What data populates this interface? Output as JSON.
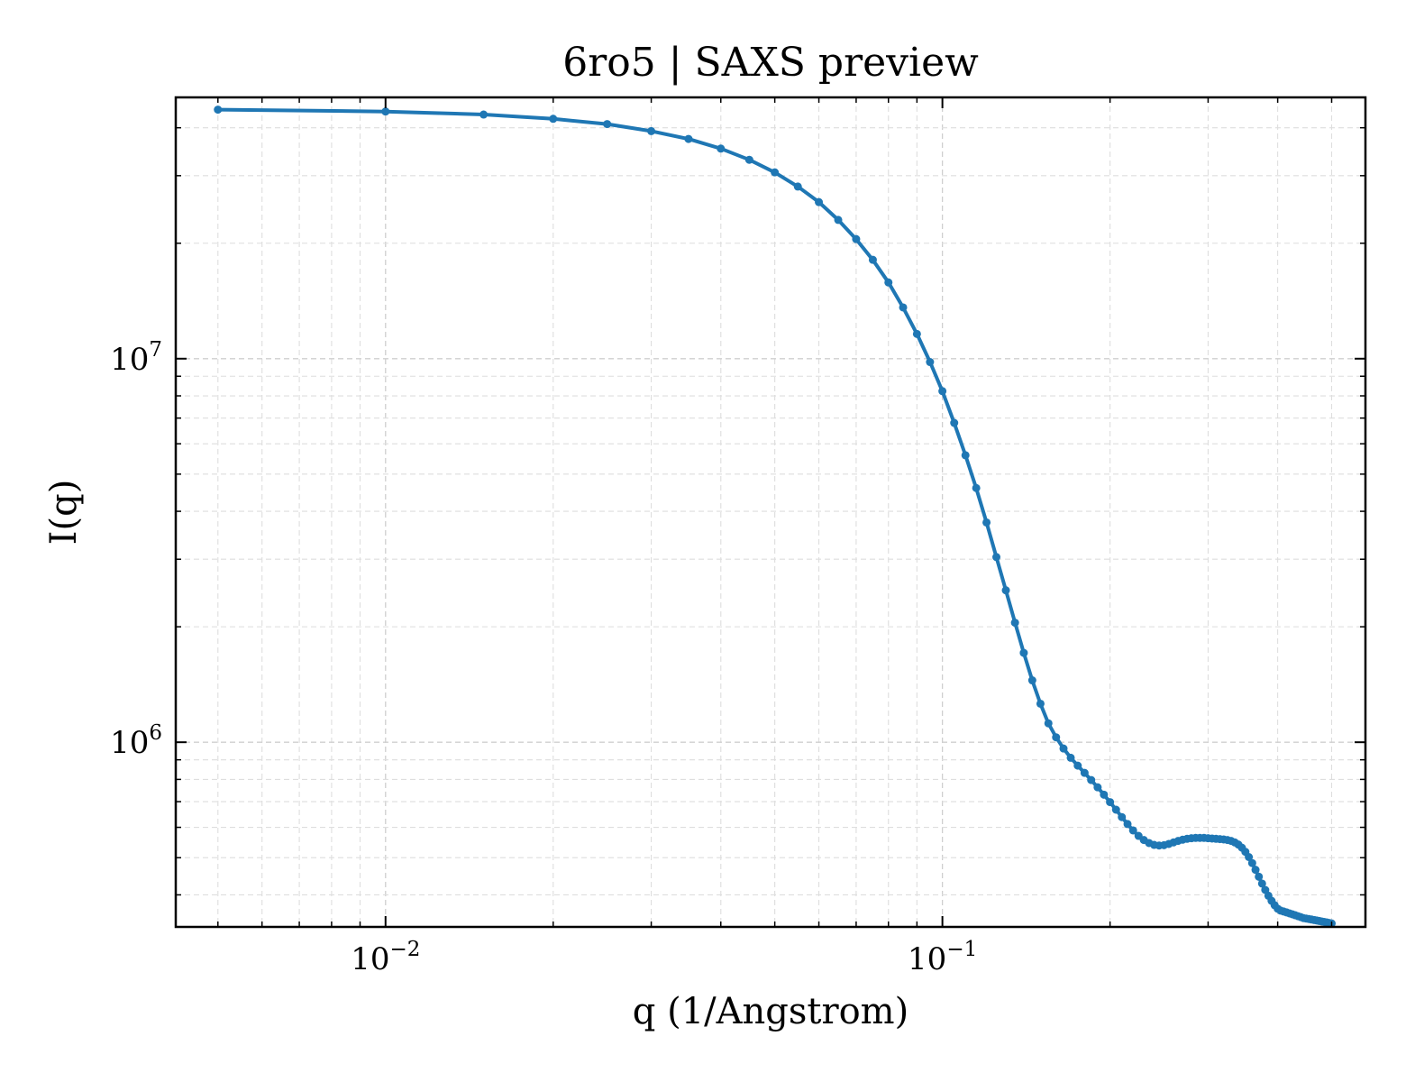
{
  "chart_data": {
    "type": "line",
    "title": "6ro5 | SAXS preview",
    "xlabel": "q (1/Angstrom)",
    "ylabel": "I(q)",
    "xscale": "log",
    "yscale": "log",
    "xlim": [
      0.0042,
      0.575
    ],
    "ylim": [
      330000,
      48000000
    ],
    "grid": true,
    "legend": "none",
    "x_ticks": [
      {
        "value": 0.01,
        "base": "10",
        "exp": "−2"
      },
      {
        "value": 0.1,
        "base": "10",
        "exp": "−1"
      }
    ],
    "y_ticks": [
      {
        "value": 1000000,
        "base": "10",
        "exp": "6"
      },
      {
        "value": 10000000,
        "base": "10",
        "exp": "7"
      }
    ],
    "series": [
      {
        "color": "#1f77b4",
        "marker": "circle",
        "x": [
          0.005,
          0.01,
          0.015,
          0.02,
          0.025,
          0.03,
          0.035,
          0.04,
          0.045,
          0.05,
          0.055,
          0.06,
          0.065,
          0.07,
          0.075,
          0.08,
          0.085,
          0.09,
          0.095,
          0.1,
          0.105,
          0.11,
          0.115,
          0.12,
          0.125,
          0.13,
          0.135,
          0.14,
          0.145,
          0.15,
          0.155,
          0.16,
          0.165,
          0.17,
          0.175,
          0.18,
          0.185,
          0.19,
          0.195,
          0.2,
          0.205,
          0.21,
          0.215,
          0.22,
          0.225,
          0.23,
          0.235,
          0.24,
          0.245,
          0.25,
          0.255,
          0.26,
          0.265,
          0.27,
          0.275,
          0.28,
          0.285,
          0.29,
          0.295,
          0.3,
          0.305,
          0.31,
          0.315,
          0.32,
          0.325,
          0.33,
          0.335,
          0.34,
          0.345,
          0.35,
          0.355,
          0.36,
          0.365,
          0.37,
          0.375,
          0.38,
          0.385,
          0.39,
          0.395,
          0.4,
          0.405,
          0.41,
          0.415,
          0.42,
          0.425,
          0.43,
          0.435,
          0.44,
          0.445,
          0.45,
          0.455,
          0.46,
          0.465,
          0.47,
          0.475,
          0.48,
          0.485,
          0.49,
          0.495,
          0.5
        ],
        "y": [
          44600000,
          44100000,
          43300000,
          42200000,
          40900000,
          39200000,
          37400000,
          35300000,
          33000000,
          30600000,
          28100000,
          25600000,
          23000000,
          20500000,
          18100000,
          15800000,
          13600000,
          11600000,
          9800000,
          8230000,
          6800000,
          5600000,
          4600000,
          3740000,
          3040000,
          2490000,
          2050000,
          1710000,
          1450000,
          1260000,
          1120000,
          1030000,
          963000,
          911000,
          869000,
          832000,
          797000,
          763000,
          730000,
          698000,
          667000,
          638000,
          612000,
          589000,
          570000,
          556000,
          546000,
          540000,
          538000,
          539000,
          543000,
          548000,
          553000,
          557000,
          560000,
          562000,
          563000,
          563000,
          563000,
          562000,
          561000,
          560000,
          559000,
          558000,
          556000,
          553000,
          548000,
          541000,
          531000,
          518000,
          502000,
          484000,
          465000,
          446000,
          428000,
          412000,
          398000,
          386000,
          376000,
          368000,
          364000,
          362000,
          360000,
          358000,
          356000,
          354000,
          352000,
          350000,
          348000,
          347000,
          346000,
          345000,
          344000,
          343000,
          342000,
          341000,
          340000,
          339000,
          338000,
          337000
        ]
      }
    ]
  }
}
